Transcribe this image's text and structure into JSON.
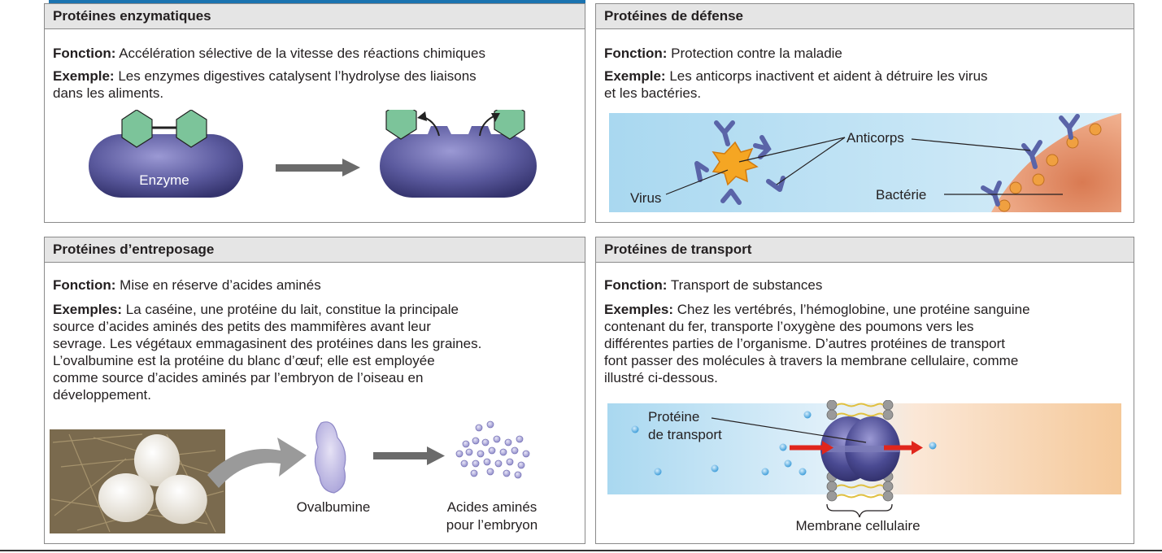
{
  "panels": {
    "enzymatic": {
      "title": "Protéines enzymatiques",
      "function_label": "Fonction:",
      "function_text": "Accélération sélective de la vitesse des réactions chimiques",
      "example_label": "Exemple:",
      "example_line1": "Les enzymes digestives catalysent l’hydrolyse des liaisons",
      "example_line2": "dans les aliments.",
      "enzyme_label": "Enzyme"
    },
    "defense": {
      "title": "Protéines de défense",
      "function_label": "Fonction:",
      "function_text": "Protection contre la maladie",
      "example_label": "Exemple:",
      "example_line1": "Les anticorps inactivent et aident à détruire les virus",
      "example_line2": "et les bactéries.",
      "labels": {
        "anticorps": "Anticorps",
        "virus": "Virus",
        "bacterie": "Bactérie"
      }
    },
    "storage": {
      "title": "Protéines d’entreposage",
      "function_label": "Fonction:",
      "function_text": "Mise en réserve d’acides aminés",
      "example_label": "Exemples:",
      "example_line1": "La caséine, une protéine du lait, constitue la principale",
      "example_lines": [
        "source d’acides aminés des petits des mammifères avant leur",
        "sevrage. Les végétaux emmagasinent des protéines dans les graines.",
        "L’ovalbumine est la protéine du blanc d’œuf; elle est employée",
        "comme source d’acides aminés par l’embryon de l’oiseau en",
        "développement."
      ],
      "labels": {
        "ovalbumine": "Ovalbumine",
        "acides_line1": "Acides aminés",
        "acides_line2": "pour l’embryon"
      }
    },
    "transport": {
      "title": "Protéines de transport",
      "function_label": "Fonction:",
      "function_text": "Transport de substances",
      "example_label": "Exemples:",
      "example_line1": "Chez les vertébrés, l’hémoglobine, une protéine sanguine",
      "example_lines": [
        "contenant du fer, transporte l’oxygène des poumons vers les",
        "différentes parties de l’organisme. D’autres protéines de transport",
        "font passer des molécules à travers la membrane cellulaire, comme",
        "illustré ci-dessous."
      ],
      "labels": {
        "proteine_line1": "Protéine",
        "proteine_line2": "de transport",
        "membrane": "Membrane cellulaire"
      }
    }
  },
  "colors": {
    "header_bg": "#e5e5e5",
    "enzyme": "#5b5a9e",
    "substrate": "#7cc49a",
    "antibody": "#6e78b8",
    "virus": "#f5a623",
    "bacteria": "#e8a382",
    "molecule": "#4aa8df",
    "arrow_red": "#e0261c"
  }
}
